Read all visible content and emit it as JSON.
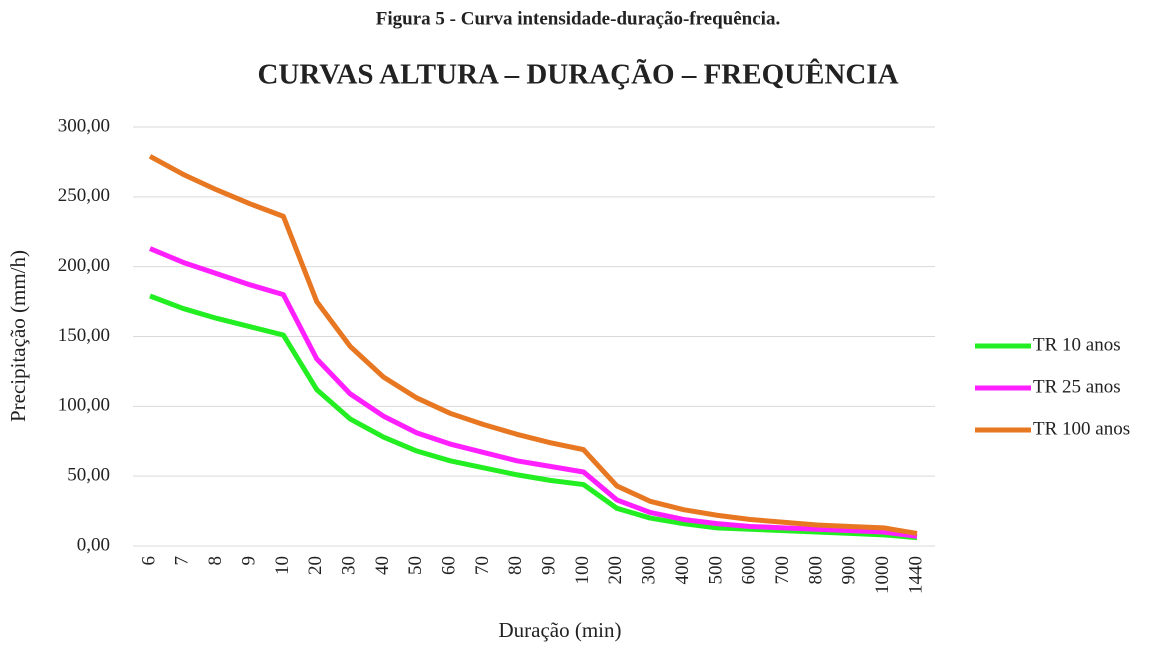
{
  "figure_caption": "Figura 5 - Curva intensidade-duração-frequência.",
  "chart_data": {
    "type": "line",
    "title": "CURVAS ALTURA – DURAÇÃO – FREQUÊNCIA",
    "x_label": "Duração (min)",
    "y_label": "Precipitação (mm/h)",
    "categories": [
      "6",
      "7",
      "8",
      "9",
      "10",
      "20",
      "30",
      "40",
      "50",
      "60",
      "70",
      "80",
      "90",
      "100",
      "200",
      "300",
      "400",
      "500",
      "600",
      "700",
      "800",
      "900",
      "1000",
      "1440"
    ],
    "series": [
      {
        "name": "TR 10 anos",
        "color": "#22ee22",
        "values": [
          179,
          170,
          163,
          157,
          151,
          112,
          91,
          78,
          68,
          61,
          56,
          51,
          47,
          44,
          27,
          20,
          16,
          13,
          12,
          11,
          10,
          9,
          8,
          6
        ]
      },
      {
        "name": "TR 25 anos",
        "color": "#ff1fff",
        "values": [
          213,
          203,
          195,
          187,
          180,
          134,
          109,
          93,
          81,
          73,
          67,
          61,
          57,
          53,
          33,
          24,
          19,
          16,
          14,
          13,
          12,
          11,
          10,
          7
        ]
      },
      {
        "name": "TR 100 anos",
        "color": "#e87722",
        "values": [
          279,
          266,
          255,
          245,
          236,
          175,
          143,
          121,
          106,
          95,
          87,
          80,
          74,
          69,
          43,
          32,
          26,
          22,
          19,
          17,
          15,
          14,
          13,
          9
        ]
      }
    ],
    "ylim": [
      0,
      300
    ],
    "yticks": [
      {
        "value": 0,
        "label": "0,00"
      },
      {
        "value": 50,
        "label": "50,00"
      },
      {
        "value": 100,
        "label": "100,00"
      },
      {
        "value": 150,
        "label": "150,00"
      },
      {
        "value": 200,
        "label": "200,00"
      },
      {
        "value": 250,
        "label": "250,00"
      },
      {
        "value": 300,
        "label": "300,00"
      }
    ],
    "grid": true,
    "legend": "right"
  }
}
